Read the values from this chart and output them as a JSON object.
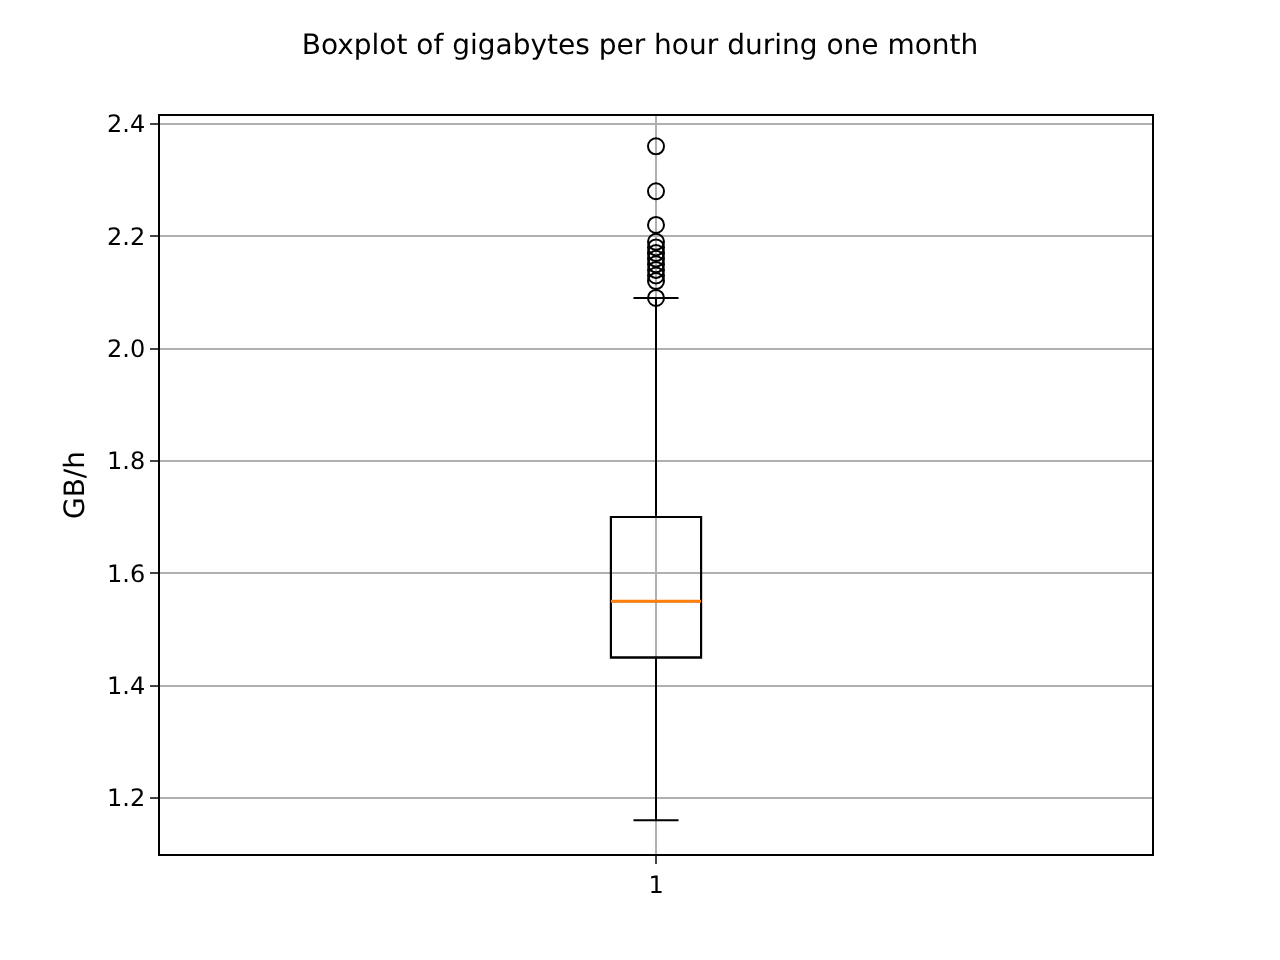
{
  "chart_data": {
    "type": "box",
    "title": "Boxplot of gigabytes per hour during one month",
    "ylabel": "GB/h",
    "categories": [
      "1"
    ],
    "boxes": [
      {
        "low": 1.16,
        "q1": 1.45,
        "median": 1.55,
        "q3": 1.7,
        "high": 2.09,
        "outliers": [
          2.36,
          2.28,
          2.22,
          2.19,
          2.18,
          2.17,
          2.16,
          2.15,
          2.14,
          2.13,
          2.12,
          2.09
        ]
      }
    ],
    "color": "#000000",
    "ylim": [
      1.1,
      2.414
    ],
    "yticks": [
      1.2,
      1.4,
      1.6,
      1.8,
      {
        "value": 2,
        "label": "2.0"
      },
      2.2,
      2.4
    ],
    "grid": true
  }
}
